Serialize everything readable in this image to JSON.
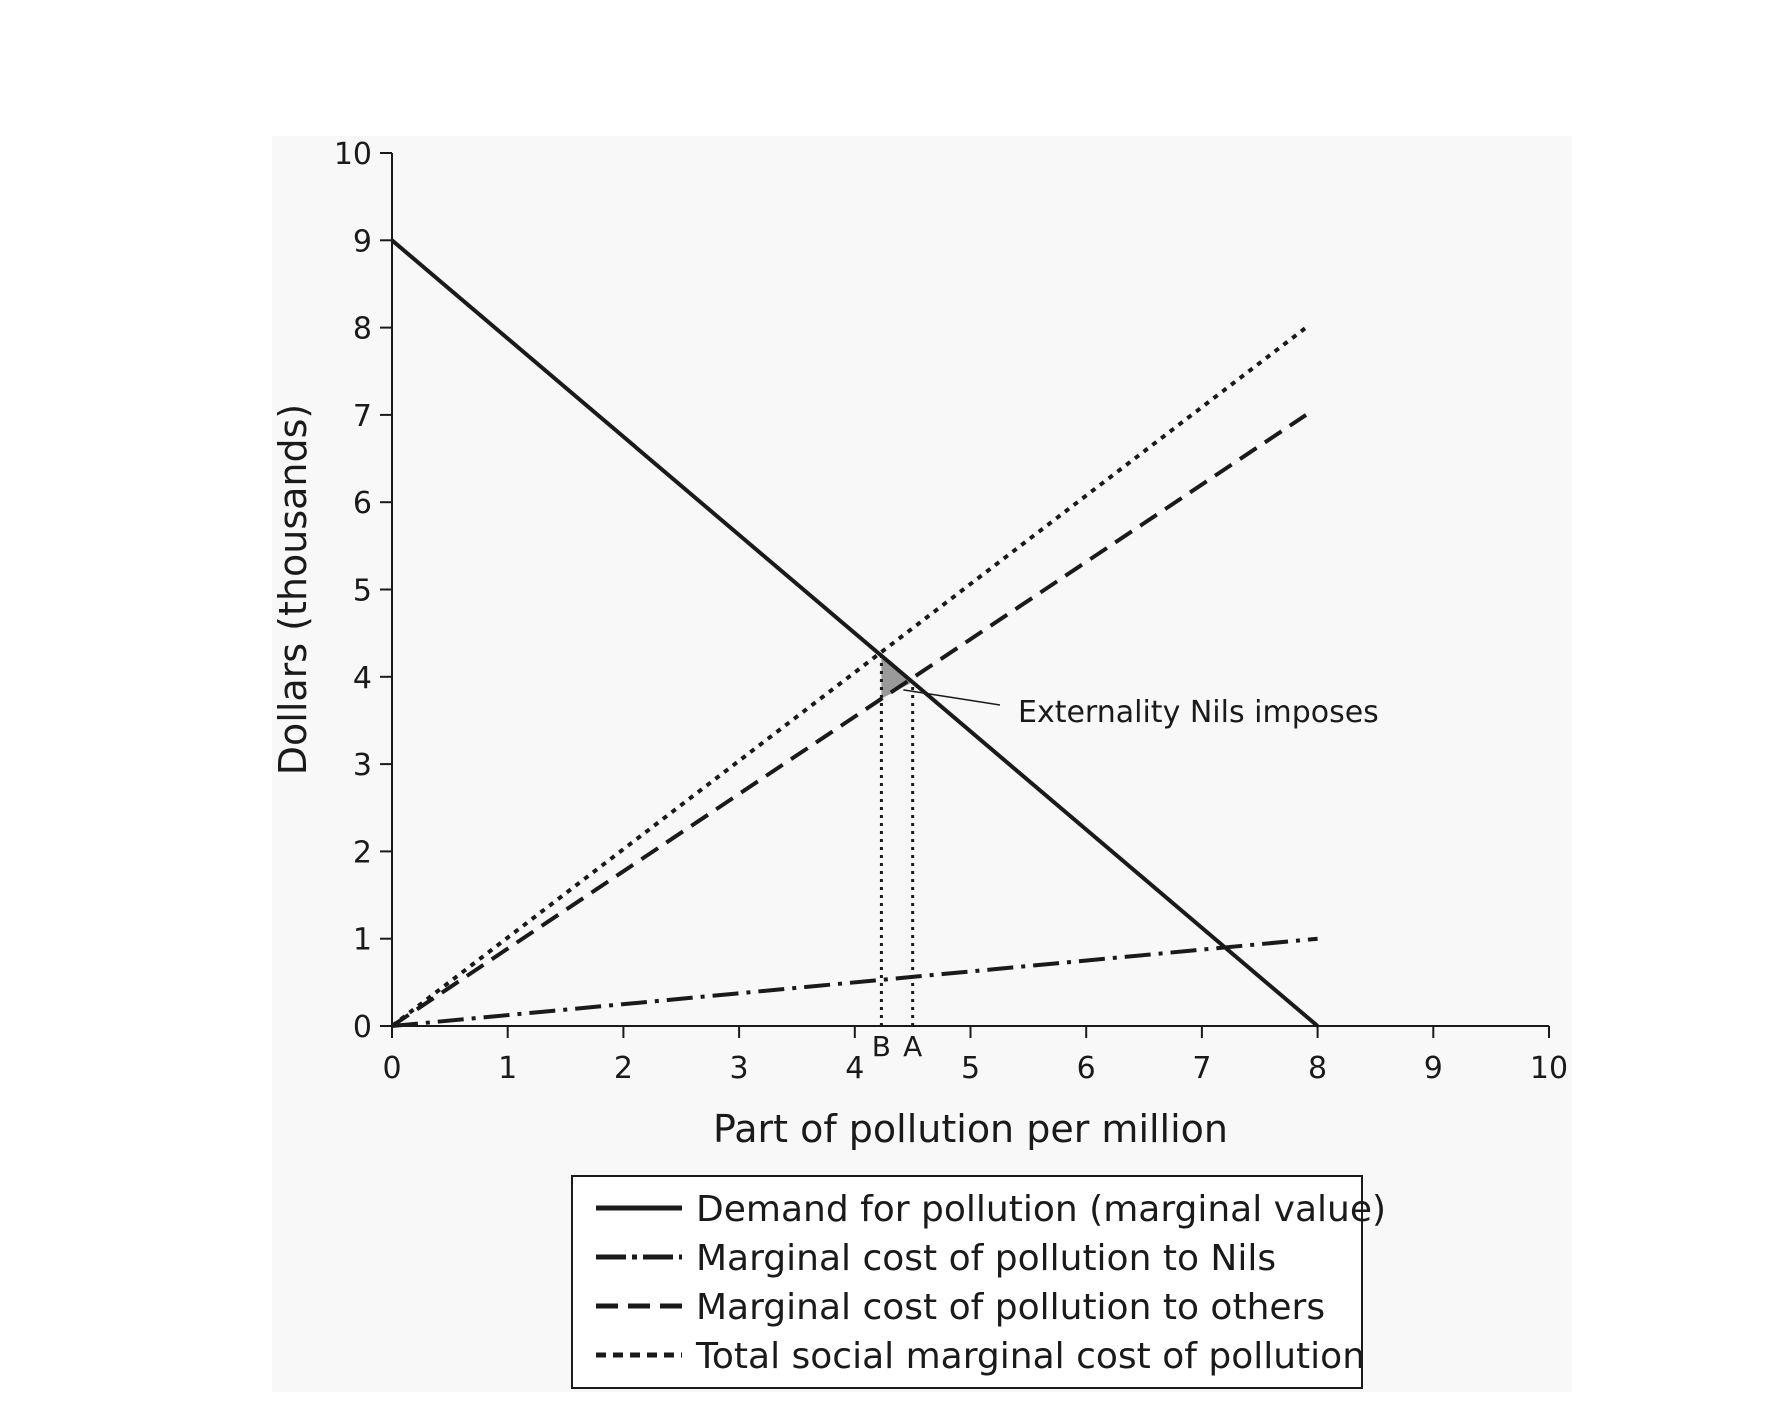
{
  "chart_data": {
    "type": "line",
    "xlabel": "Part of pollution per million",
    "ylabel": "Dollars (thousands)",
    "xlim": [
      0,
      10
    ],
    "ylim": [
      0,
      10
    ],
    "xticks": [
      0,
      1,
      2,
      3,
      4,
      5,
      6,
      7,
      8,
      9,
      10
    ],
    "yticks": [
      0,
      1,
      2,
      3,
      4,
      5,
      6,
      7,
      8,
      9,
      10
    ],
    "grid": false,
    "legend_position": "bottom",
    "series": [
      {
        "name": "Demand for pollution (marginal value)",
        "style": "solid",
        "x": [
          0,
          8
        ],
        "y": [
          9,
          0
        ]
      },
      {
        "name": "Marginal cost of pollution to Nils",
        "style": "dashdot",
        "x": [
          0,
          8
        ],
        "y": [
          0,
          1
        ]
      },
      {
        "name": "Marginal cost of pollution to others",
        "style": "dashed",
        "x": [
          0,
          7.9
        ],
        "y": [
          0,
          7
        ]
      },
      {
        "name": "Total social marginal cost of pollution",
        "style": "dotted",
        "x": [
          0,
          7.9
        ],
        "y": [
          0,
          8
        ]
      }
    ],
    "markers": [
      {
        "label": "B",
        "x": 4.23
      },
      {
        "label": "A",
        "x": 4.5
      }
    ],
    "annotation": {
      "text": "Externality Nils imposes",
      "x": 4.42,
      "y": 3.85
    },
    "shaded_triangle": [
      [
        4.23,
        4.24
      ],
      [
        4.5,
        3.94
      ],
      [
        4.23,
        3.75
      ]
    ],
    "colors": {
      "lines": "#1a1a1a",
      "shade": "#9a9a9a",
      "plot_background": "#f8f8f8"
    }
  }
}
